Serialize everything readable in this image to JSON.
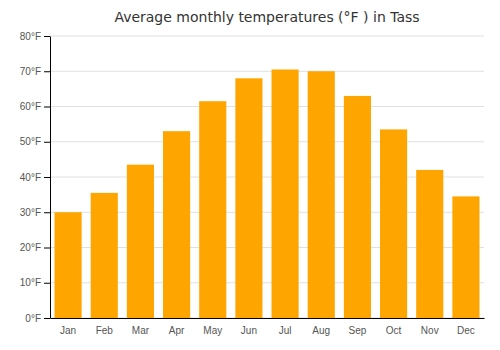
{
  "chart_data": {
    "type": "bar",
    "title": "Average monthly temperatures (°F ) in Tass",
    "categories": [
      "Jan",
      "Feb",
      "Mar",
      "Apr",
      "May",
      "Jun",
      "Jul",
      "Aug",
      "Sep",
      "Oct",
      "Nov",
      "Dec"
    ],
    "values": [
      30,
      35.5,
      43.5,
      53,
      61.5,
      68,
      70.5,
      70,
      63,
      53.5,
      42,
      34.5
    ],
    "color": "#FFA500",
    "ylim": [
      0,
      80
    ],
    "yticks": [
      {
        "value": 0,
        "label": "0°F"
      },
      {
        "value": 10,
        "label": "10°F"
      },
      {
        "value": 20,
        "label": "20°F"
      },
      {
        "value": 30,
        "label": "30°F"
      },
      {
        "value": 40,
        "label": "40°F"
      },
      {
        "value": 50,
        "label": "50°F"
      },
      {
        "value": 60,
        "label": "60°F"
      },
      {
        "value": 70,
        "label": "70°F"
      },
      {
        "value": 80,
        "label": "80°F"
      }
    ],
    "grid": true
  }
}
